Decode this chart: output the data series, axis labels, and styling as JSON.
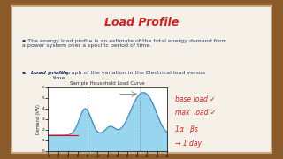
{
  "title": "Load Profile",
  "title_color": "#cc2222",
  "bg_slide": "#f5f0e8",
  "bg_wood": "#8B5A2B",
  "bullet1": "The energy load profile is an estimate of the total energy demand from\na power system over a specific period of time.",
  "bullet2_bold": "Load profile",
  "bullet2_rest": " is a graph of the variation in the Electrical load versus\ntime.",
  "chart_title": "Sample Household Load Curve",
  "chart_fill_color": "#87ceeb",
  "chart_line_color": "#4682b4",
  "annotation_color": "#cc2222",
  "annotation_texts": [
    "base load ✓",
    "max  load ✓",
    "1α   βs",
    "→ 1 day"
  ],
  "text_color": "#2c3e6b",
  "border_color": "#c8a882"
}
